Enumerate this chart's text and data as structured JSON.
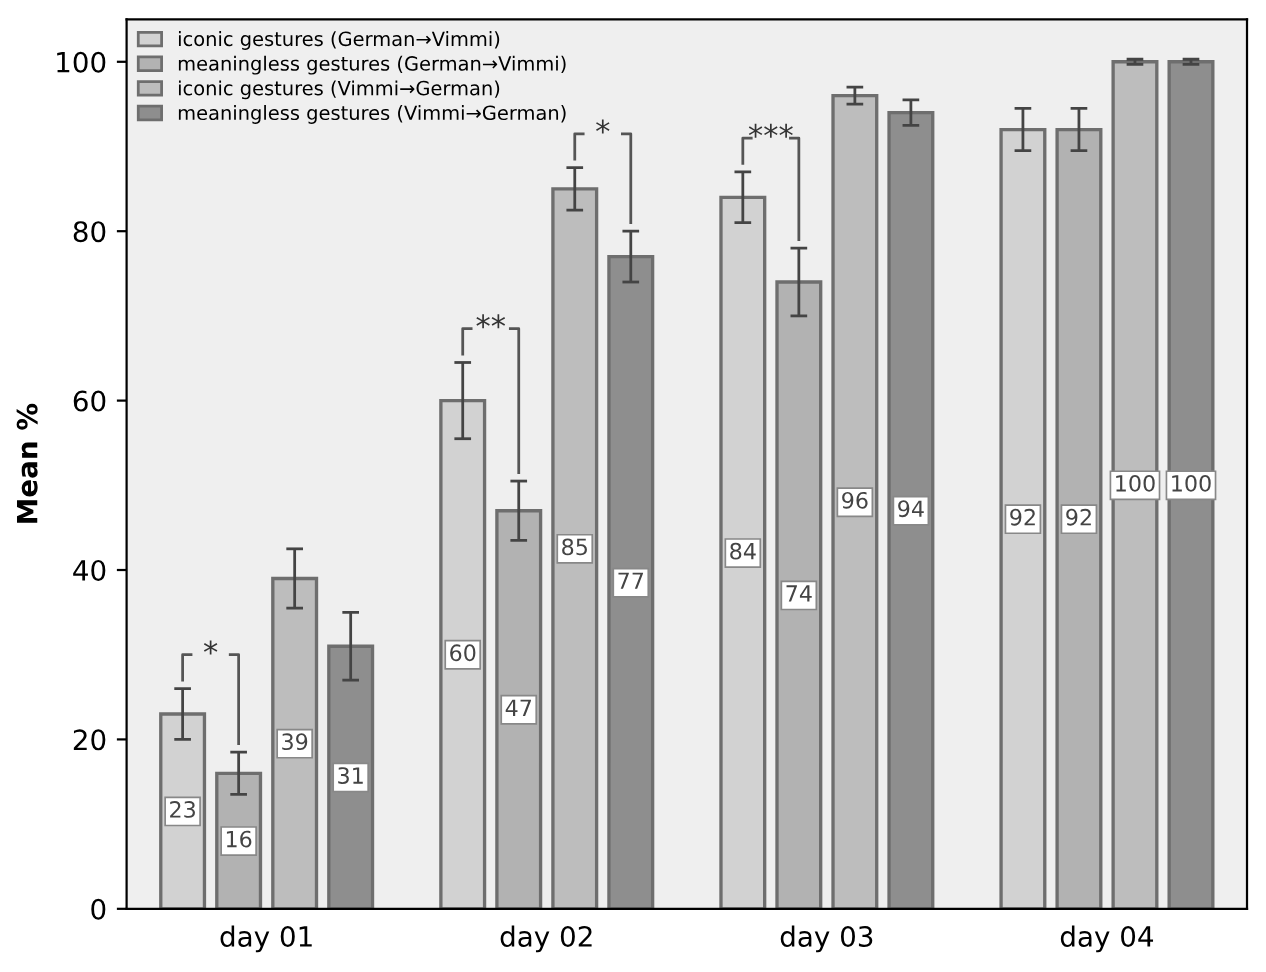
{
  "chart_data": {
    "type": "bar",
    "ylabel": "Mean %",
    "categories": [
      "day 01",
      "day 02",
      "day 03",
      "day 04"
    ],
    "series": [
      {
        "name": "iconic gestures (German→Vimmi)",
        "color": "#d2d2d2",
        "values": [
          23,
          60,
          84,
          92
        ],
        "errors": [
          3,
          4.5,
          3,
          2.5
        ]
      },
      {
        "name": "meaningless gestures (German→Vimmi)",
        "color": "#b2b2b2",
        "values": [
          16,
          47,
          74,
          92
        ],
        "errors": [
          2.5,
          3.5,
          4,
          2.5
        ]
      },
      {
        "name": "iconic gestures (Vimmi→German)",
        "color": "#bdbdbd",
        "values": [
          39,
          85,
          96,
          100
        ],
        "errors": [
          3.5,
          2.5,
          1,
          0.3
        ]
      },
      {
        "name": "meaningless gestures (Vimmi→German)",
        "color": "#8e8e8e",
        "values": [
          31,
          77,
          94,
          100
        ],
        "errors": [
          4,
          3,
          1.5,
          0.3
        ]
      }
    ],
    "data_labels": true,
    "ylim": [
      0,
      105
    ],
    "yticks": [
      0,
      20,
      40,
      60,
      80,
      100
    ],
    "grid": false,
    "legend": "top left",
    "annotations": [
      {
        "text": "*",
        "x": "day 01",
        "y": 23
      },
      {
        "text": "**",
        "x": "day 02",
        "y": 60
      },
      {
        "text": "*",
        "x": "day 02",
        "y": 85
      },
      {
        "text": "***",
        "x": "day 03",
        "y": 84
      }
    ]
  }
}
